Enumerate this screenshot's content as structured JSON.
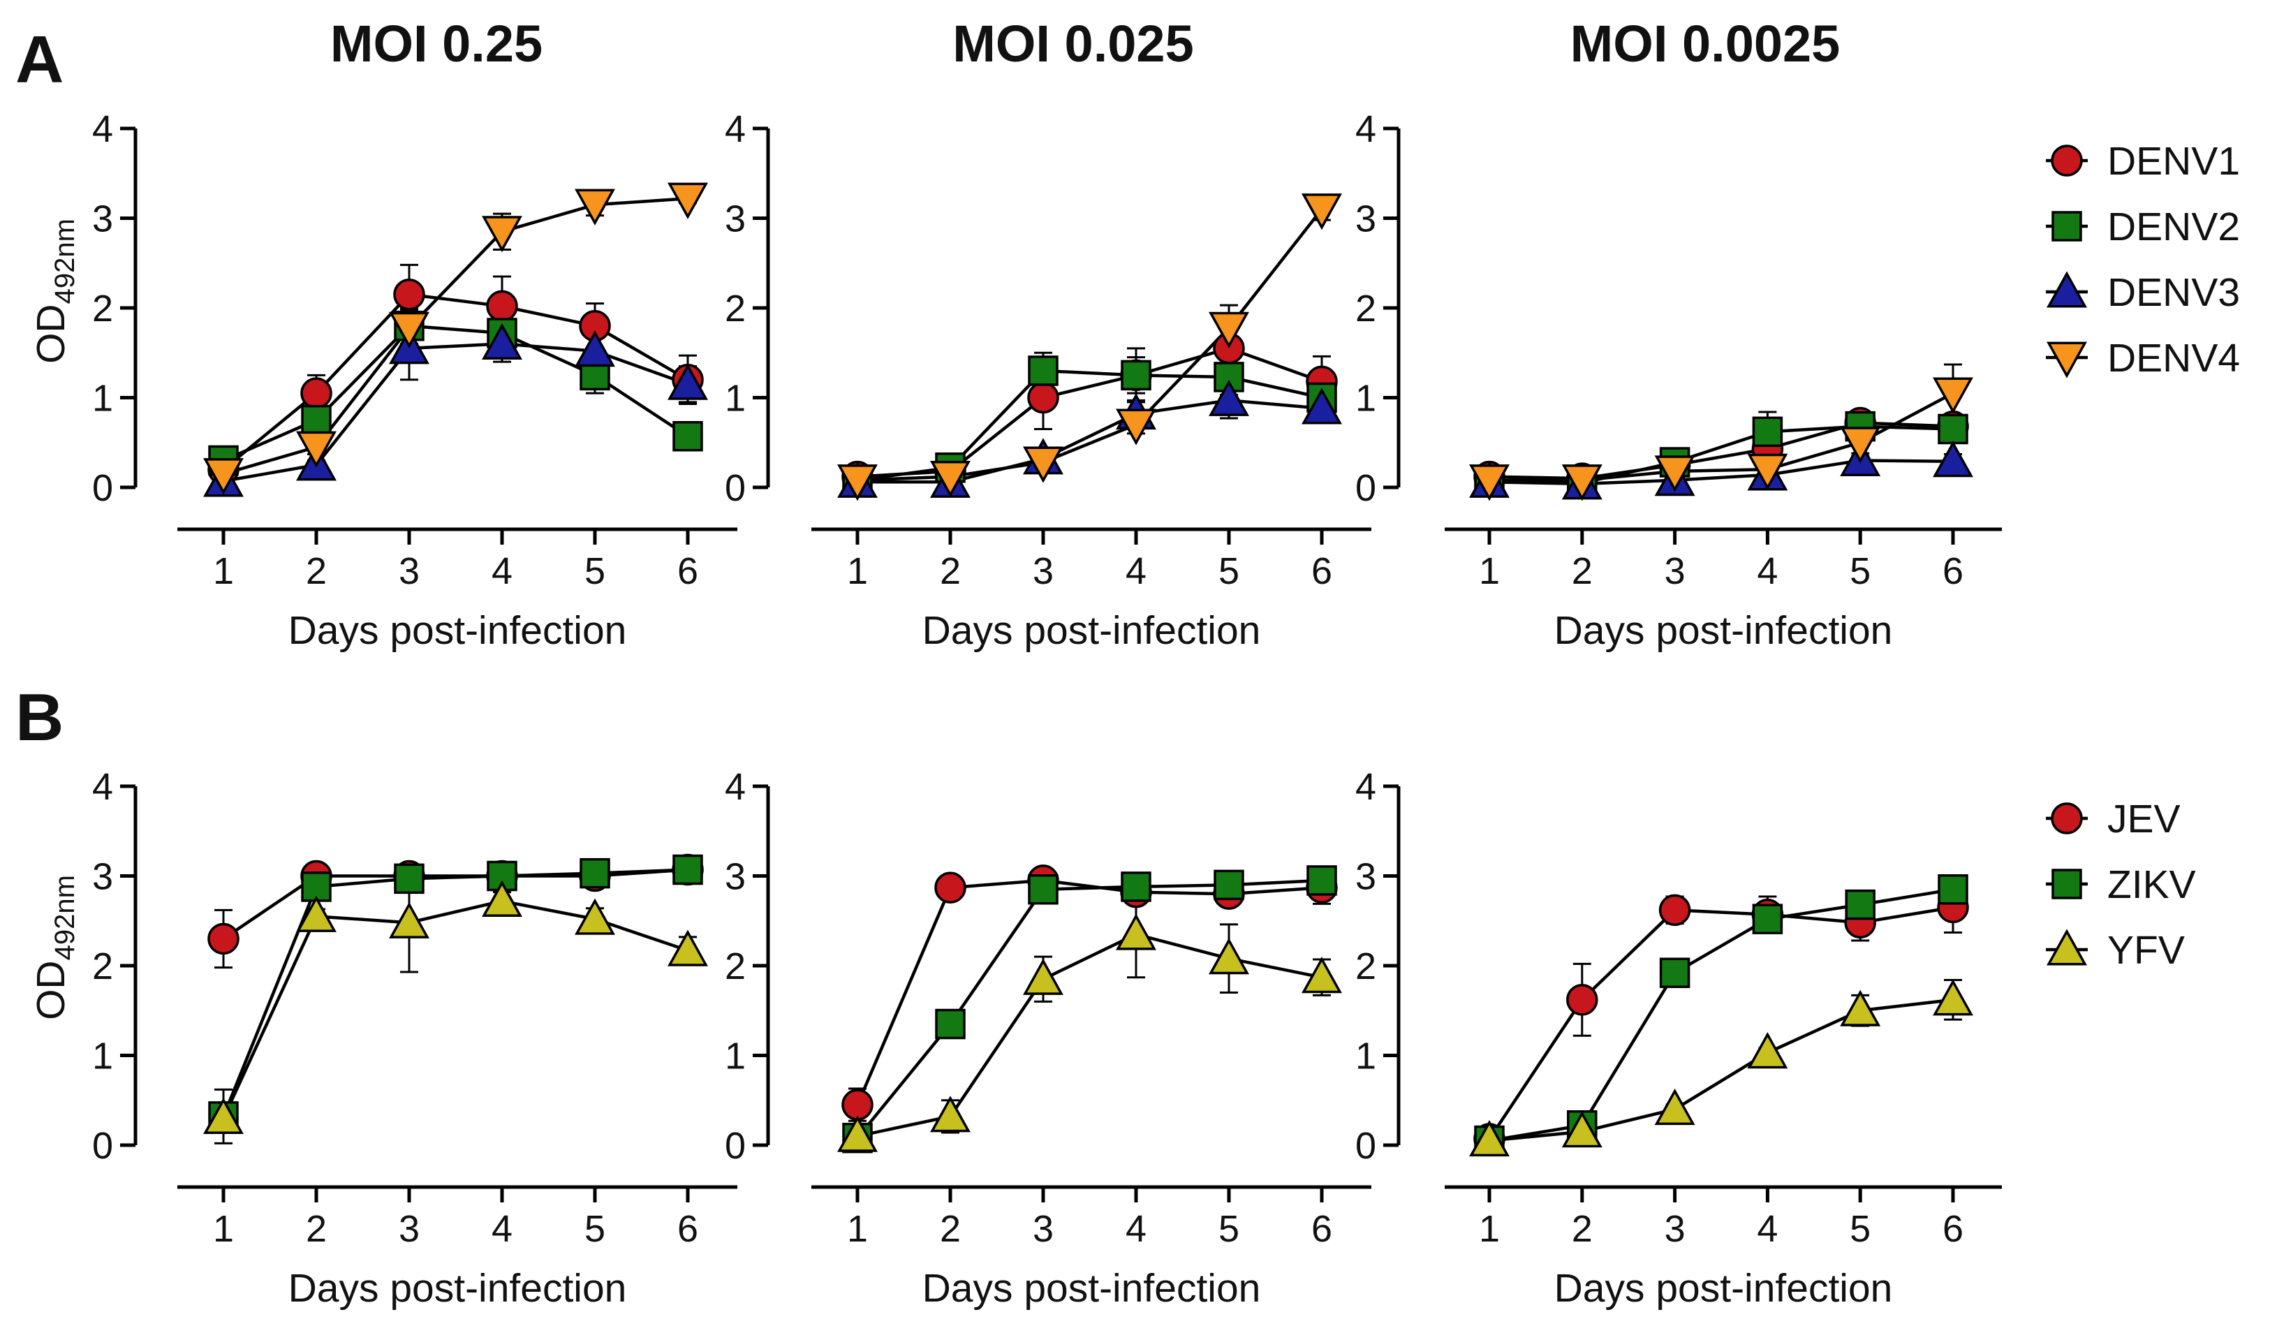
{
  "panel_letters": [
    "A",
    "B"
  ],
  "column_titles": [
    "MOI 0.25",
    "MOI 0.025",
    "MOI 0.0025"
  ],
  "ylabel_main": "OD",
  "ylabel_sub": "492nm",
  "xlabel": "Days post-infection",
  "series_styles": {
    "DENV1": {
      "marker": "circle",
      "color": "#C8161D"
    },
    "DENV2": {
      "marker": "square",
      "color": "#137A13"
    },
    "DENV3": {
      "marker": "triangle-up",
      "color": "#1A1FA0"
    },
    "DENV4": {
      "marker": "triangle-down",
      "color": "#F7941D"
    },
    "JEV": {
      "marker": "circle",
      "color": "#C8161D"
    },
    "ZIKV": {
      "marker": "square",
      "color": "#137A13"
    },
    "YFV": {
      "marker": "triangle-up",
      "color": "#C8C01E"
    }
  },
  "chart_data": [
    {
      "type": "line",
      "panel": "A",
      "title": "MOI 0.25",
      "xlabel": "Days post-infection",
      "ylabel": "OD492nm",
      "x": [
        1,
        2,
        3,
        4,
        5,
        6
      ],
      "ylim": [
        0,
        4
      ],
      "yticks": [
        0,
        1,
        2,
        3,
        4
      ],
      "series": [
        {
          "name": "DENV1",
          "values": [
            0.2,
            1.05,
            2.15,
            2.02,
            1.8,
            1.2
          ],
          "errors": [
            0.05,
            0.2,
            0.33,
            0.33,
            0.25,
            0.27
          ]
        },
        {
          "name": "DENV2",
          "values": [
            0.3,
            0.75,
            1.8,
            1.72,
            1.25,
            0.57
          ],
          "errors": [
            0.05,
            0.15,
            0.2,
            0.2,
            0.2,
            0.08
          ]
        },
        {
          "name": "DENV3",
          "values": [
            0.07,
            0.25,
            1.55,
            1.6,
            1.52,
            1.15
          ],
          "errors": [
            0.03,
            0.05,
            0.35,
            0.2,
            0.15,
            0.2
          ]
        },
        {
          "name": "DENV4",
          "values": [
            0.15,
            0.45,
            1.78,
            2.85,
            3.15,
            3.22
          ],
          "errors": [
            0.03,
            0.08,
            0.2,
            0.2,
            0.12,
            0.05
          ]
        }
      ]
    },
    {
      "type": "line",
      "panel": "A",
      "title": "MOI 0.025",
      "xlabel": "Days post-infection",
      "ylabel": "OD492nm",
      "x": [
        1,
        2,
        3,
        4,
        5,
        6
      ],
      "ylim": [
        0,
        4
      ],
      "yticks": [
        0,
        1,
        2,
        3,
        4
      ],
      "series": [
        {
          "name": "DENV1",
          "values": [
            0.12,
            0.18,
            1.0,
            1.25,
            1.55,
            1.18
          ],
          "errors": [
            0.05,
            0.05,
            0.35,
            0.3,
            0.3,
            0.28
          ]
        },
        {
          "name": "DENV2",
          "values": [
            0.08,
            0.22,
            1.3,
            1.25,
            1.23,
            1.0
          ],
          "errors": [
            0.03,
            0.05,
            0.2,
            0.2,
            0.2,
            0.2
          ]
        },
        {
          "name": "DENV3",
          "values": [
            0.06,
            0.06,
            0.32,
            0.82,
            0.97,
            0.88
          ],
          "errors": [
            0.03,
            0.03,
            0.1,
            0.15,
            0.2,
            0.15
          ]
        },
        {
          "name": "DENV4",
          "values": [
            0.08,
            0.12,
            0.28,
            0.7,
            1.78,
            3.1
          ],
          "errors": [
            0.03,
            0.05,
            0.05,
            0.1,
            0.25,
            0.12
          ]
        }
      ]
    },
    {
      "type": "line",
      "panel": "A",
      "title": "MOI 0.0025",
      "xlabel": "Days post-infection",
      "ylabel": "OD492nm",
      "x": [
        1,
        2,
        3,
        4,
        5,
        6
      ],
      "ylim": [
        0,
        4
      ],
      "yticks": [
        0,
        1,
        2,
        3,
        4
      ],
      "series": [
        {
          "name": "DENV1",
          "values": [
            0.12,
            0.1,
            0.25,
            0.43,
            0.72,
            0.68
          ],
          "errors": [
            0.03,
            0.03,
            0.05,
            0.1,
            0.12,
            0.12
          ]
        },
        {
          "name": "DENV2",
          "values": [
            0.08,
            0.05,
            0.28,
            0.62,
            0.68,
            0.65
          ],
          "errors": [
            0.03,
            0.03,
            0.08,
            0.22,
            0.15,
            0.15
          ]
        },
        {
          "name": "DENV3",
          "values": [
            0.06,
            0.04,
            0.08,
            0.14,
            0.3,
            0.29
          ],
          "errors": [
            0.02,
            0.02,
            0.03,
            0.05,
            0.08,
            0.08
          ]
        },
        {
          "name": "DENV4",
          "values": [
            0.08,
            0.08,
            0.18,
            0.2,
            0.5,
            1.05
          ],
          "errors": [
            0.03,
            0.03,
            0.05,
            0.05,
            0.15,
            0.32
          ]
        }
      ]
    },
    {
      "type": "line",
      "panel": "B",
      "title": "MOI 0.25",
      "xlabel": "Days post-infection",
      "ylabel": "OD492nm",
      "x": [
        1,
        2,
        3,
        4,
        5,
        6
      ],
      "ylim": [
        0,
        4
      ],
      "yticks": [
        0,
        1,
        2,
        3,
        4
      ],
      "series": [
        {
          "name": "JEV",
          "values": [
            2.3,
            3.0,
            3.0,
            3.0,
            3.0,
            3.07
          ],
          "errors": [
            0.32,
            0.05,
            0.05,
            0.05,
            0.05,
            0.05
          ]
        },
        {
          "name": "ZIKV",
          "values": [
            0.32,
            2.88,
            2.97,
            3.0,
            3.03,
            3.07
          ],
          "errors": [
            0.3,
            0.05,
            0.05,
            0.05,
            0.05,
            0.05
          ]
        },
        {
          "name": "YFV",
          "values": [
            0.3,
            2.55,
            2.48,
            2.72,
            2.52,
            2.17
          ],
          "errors": [
            0.05,
            0.08,
            0.55,
            0.1,
            0.12,
            0.15
          ]
        }
      ]
    },
    {
      "type": "line",
      "panel": "B",
      "title": "MOI 0.025",
      "xlabel": "Days post-infection",
      "ylabel": "OD492nm",
      "x": [
        1,
        2,
        3,
        4,
        5,
        6
      ],
      "ylim": [
        0,
        4
      ],
      "yticks": [
        0,
        1,
        2,
        3,
        4
      ],
      "series": [
        {
          "name": "JEV",
          "values": [
            0.45,
            2.87,
            2.95,
            2.82,
            2.8,
            2.87
          ],
          "errors": [
            0.18,
            0.05,
            0.05,
            0.05,
            0.05,
            0.18
          ]
        },
        {
          "name": "ZIKV",
          "values": [
            0.08,
            1.35,
            2.85,
            2.88,
            2.9,
            2.95
          ],
          "errors": [
            0.03,
            0.15,
            0.05,
            0.05,
            0.05,
            0.05
          ]
        },
        {
          "name": "YFV",
          "values": [
            0.1,
            0.32,
            1.85,
            2.35,
            2.08,
            1.87
          ],
          "errors": [
            0.03,
            0.18,
            0.25,
            0.48,
            0.38,
            0.2
          ]
        }
      ]
    },
    {
      "type": "line",
      "panel": "B",
      "title": "MOI 0.0025",
      "xlabel": "Days post-infection",
      "ylabel": "OD492nm",
      "x": [
        1,
        2,
        3,
        4,
        5,
        6
      ],
      "ylim": [
        0,
        4
      ],
      "yticks": [
        0,
        1,
        2,
        3,
        4
      ],
      "series": [
        {
          "name": "JEV",
          "values": [
            0.07,
            1.62,
            2.62,
            2.57,
            2.48,
            2.65
          ],
          "errors": [
            0.03,
            0.4,
            0.15,
            0.2,
            0.2,
            0.28
          ]
        },
        {
          "name": "ZIKV",
          "values": [
            0.05,
            0.22,
            1.92,
            2.52,
            2.68,
            2.85
          ],
          "errors": [
            0.02,
            0.05,
            0.05,
            0.1,
            0.08,
            0.1
          ]
        },
        {
          "name": "YFV",
          "values": [
            0.05,
            0.15,
            0.4,
            1.03,
            1.5,
            1.62
          ],
          "errors": [
            0.02,
            0.03,
            0.05,
            0.05,
            0.17,
            0.22
          ]
        }
      ]
    }
  ],
  "legends": {
    "A": [
      "DENV1",
      "DENV2",
      "DENV3",
      "DENV4"
    ],
    "B": [
      "JEV",
      "ZIKV",
      "YFV"
    ]
  }
}
